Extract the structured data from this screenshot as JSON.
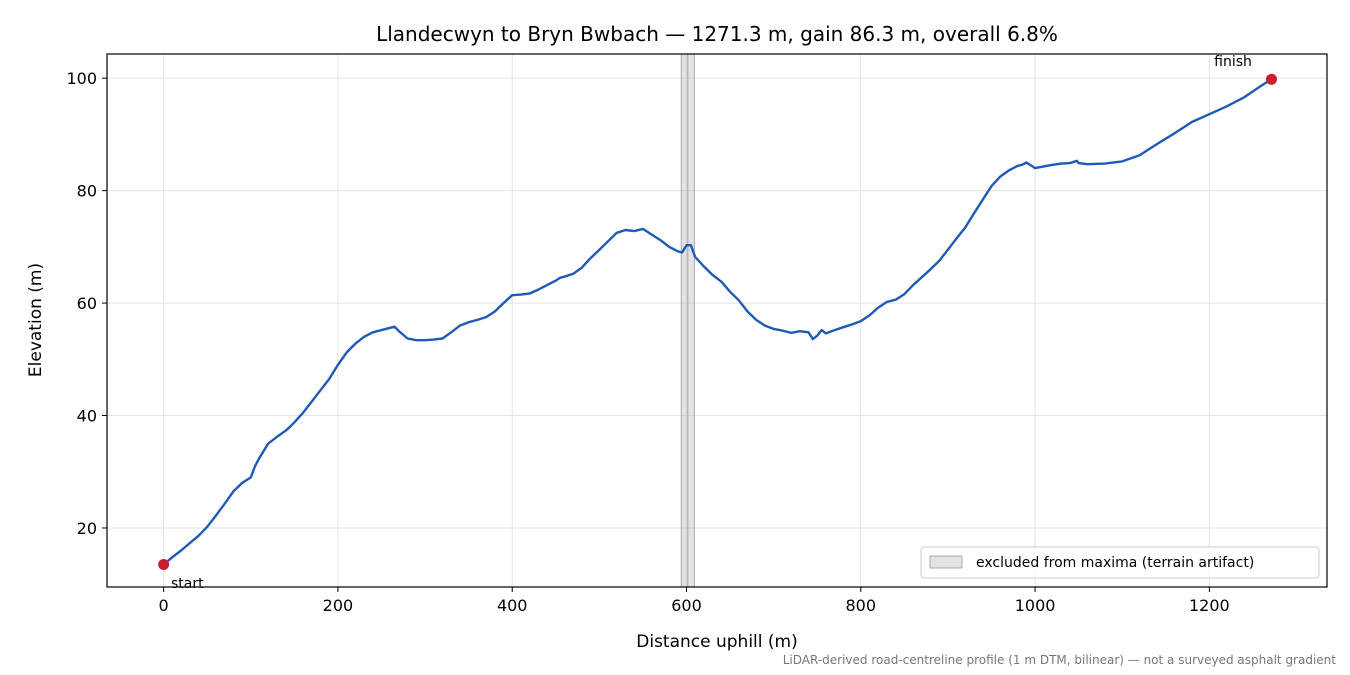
{
  "chart_data": {
    "type": "line",
    "title": "Llandecwyn to Bryn Bwbach — 1271.3 m, gain 86.3 m, overall 6.8%",
    "xlabel": "Distance uphill (m)",
    "ylabel": "Elevation (m)",
    "xlim": [
      -65,
      1335
    ],
    "ylim": [
      9.5,
      104.3
    ],
    "xticks": [
      0,
      200,
      400,
      600,
      800,
      1000,
      1200
    ],
    "yticks": [
      20,
      40,
      60,
      80,
      100
    ],
    "grid": true,
    "series": [
      {
        "color": "#1f5bb5",
        "x": [
          0,
          10,
          20,
          30,
          40,
          50,
          60,
          70,
          80,
          90,
          100,
          105,
          110,
          120,
          130,
          140,
          145,
          150,
          160,
          170,
          180,
          190,
          200,
          210,
          215,
          220,
          230,
          240,
          250,
          260,
          265,
          270,
          280,
          290,
          300,
          310,
          320,
          330,
          340,
          350,
          360,
          370,
          380,
          390,
          400,
          410,
          420,
          430,
          440,
          450,
          455,
          460,
          470,
          480,
          490,
          500,
          510,
          520,
          530,
          540,
          550,
          560,
          570,
          580,
          590,
          595,
          600,
          605,
          610,
          620,
          630,
          640,
          650,
          660,
          670,
          680,
          690,
          700,
          710,
          720,
          730,
          740,
          745,
          750,
          755,
          760,
          770,
          780,
          790,
          800,
          810,
          820,
          830,
          840,
          850,
          860,
          870,
          880,
          890,
          900,
          910,
          920,
          930,
          940,
          950,
          960,
          970,
          980,
          985,
          990,
          1000,
          1010,
          1020,
          1030,
          1040,
          1048,
          1050,
          1060,
          1080,
          1100,
          1120,
          1140,
          1160,
          1180,
          1200,
          1220,
          1240,
          1260,
          1271.3
        ],
        "y": [
          13.5,
          14.8,
          16.0,
          17.3,
          18.6,
          20.2,
          22.2,
          24.3,
          26.5,
          28.0,
          29.0,
          31.0,
          32.5,
          35.0,
          36.2,
          37.3,
          38.0,
          38.8,
          40.5,
          42.5,
          44.5,
          46.5,
          49.0,
          51.2,
          52.0,
          52.8,
          54.0,
          54.8,
          55.2,
          55.6,
          55.8,
          55.0,
          53.7,
          53.4,
          53.4,
          53.5,
          53.7,
          54.8,
          56.0,
          56.6,
          57.0,
          57.5,
          58.5,
          60.0,
          61.4,
          61.5,
          61.7,
          62.4,
          63.2,
          64.0,
          64.5,
          64.7,
          65.2,
          66.3,
          68.0,
          69.5,
          71.0,
          72.5,
          73.0,
          72.8,
          73.2,
          72.2,
          71.2,
          70.0,
          69.2,
          69.0,
          70.3,
          70.3,
          68.2,
          66.5,
          65.0,
          63.8,
          62.0,
          60.5,
          58.5,
          57.0,
          56.0,
          55.4,
          55.1,
          54.7,
          55.0,
          54.8,
          53.6,
          54.2,
          55.2,
          54.6,
          55.2,
          55.7,
          56.2,
          56.8,
          57.8,
          59.2,
          60.2,
          60.6,
          61.6,
          63.2,
          64.6,
          66.0,
          67.5,
          69.5,
          71.5,
          73.5,
          76.0,
          78.4,
          80.8,
          82.5,
          83.6,
          84.4,
          84.6,
          85.0,
          84.0,
          84.3,
          84.6,
          84.8,
          84.9,
          85.3,
          84.9,
          84.7,
          84.8,
          85.2,
          86.3,
          88.3,
          90.2,
          92.2,
          93.6,
          95.0,
          96.6,
          98.7,
          99.8
        ]
      }
    ],
    "excluded_band": [
      594,
      609
    ],
    "legend": {
      "label": "excluded from maxima (terrain artifact)",
      "placement": "lower-right"
    },
    "annotations": [
      {
        "label": "start",
        "x": 0,
        "y": 13.5
      },
      {
        "label": "finish",
        "x": 1271.3,
        "y": 99.8
      }
    ],
    "endpoint_color": "#c81e2e",
    "footnote": "LiDAR-derived road-centreline profile (1 m DTM, bilinear) — not a surveyed asphalt gradient"
  }
}
